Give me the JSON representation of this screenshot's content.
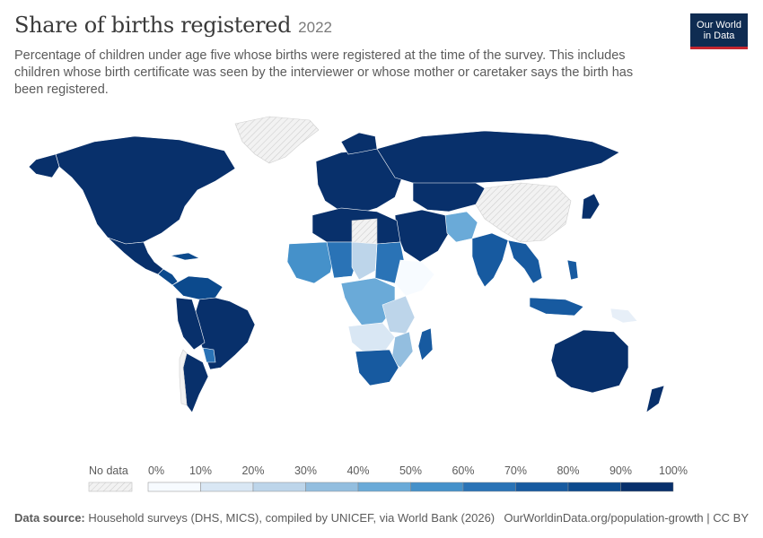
{
  "header": {
    "title": "Share of births registered",
    "year": "2022",
    "subtitle": "Percentage of children under age five whose births were registered at the time of the survey. This includes children whose birth certificate was seen by the interviewer or whose mother or caretaker says the birth has been registered."
  },
  "logo": {
    "line1": "Our World",
    "line2": "in Data"
  },
  "legend": {
    "no_data_label": "No data",
    "ticks": [
      "0%",
      "10%",
      "20%",
      "30%",
      "40%",
      "50%",
      "60%",
      "70%",
      "80%",
      "90%",
      "100%"
    ],
    "bins": [
      {
        "range": "0-10%",
        "color": "#f7fbff"
      },
      {
        "range": "10-20%",
        "color": "#d9e7f4"
      },
      {
        "range": "20-30%",
        "color": "#bdd5ea"
      },
      {
        "range": "30-40%",
        "color": "#93bedf"
      },
      {
        "range": "40-50%",
        "color": "#6aaad8"
      },
      {
        "range": "50-60%",
        "color": "#4591ca"
      },
      {
        "range": "60-70%",
        "color": "#2a73b6"
      },
      {
        "range": "70-80%",
        "color": "#175aa0"
      },
      {
        "range": "80-90%",
        "color": "#0c4a8d"
      },
      {
        "range": "90-100%",
        "color": "#08306b"
      }
    ],
    "no_data_color": "#f2f2f2"
  },
  "footer": {
    "source_label": "Data source:",
    "source_text": "Household surveys (DHS, MICS), compiled by UNICEF, via World Bank (2026)",
    "right_text": "OurWorldinData.org/population-growth | CC BY"
  },
  "map_colors": {
    "high": "#08306b",
    "mid_high": "#175aa0",
    "mid": "#2a73b6",
    "mid_low": "#4591ca",
    "low": "#93bedf",
    "lower": "#bdd5ea",
    "lowest": "#e7eff8",
    "no_data": "#f2f2f2"
  }
}
